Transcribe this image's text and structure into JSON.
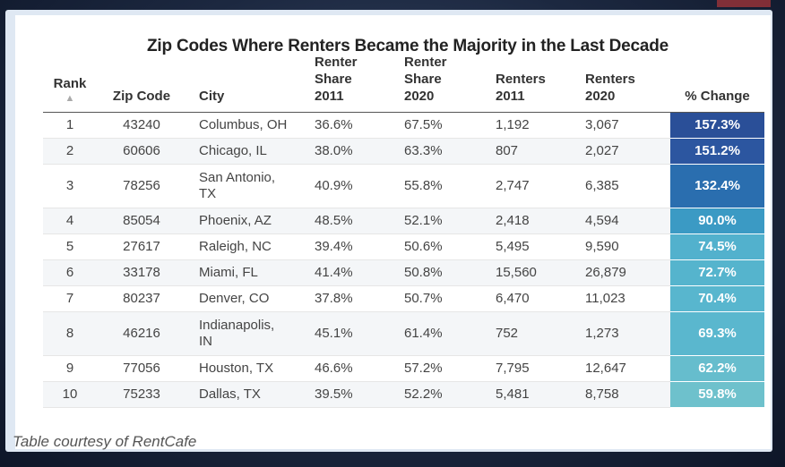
{
  "title": "Zip Codes Where Renters Became the Majority in the Last Decade",
  "columns": {
    "rank": "Rank",
    "zip": "Zip Code",
    "city": "City",
    "share2011_l1": "Renter",
    "share2011_l2": "Share",
    "share2011_l3": "2011",
    "share2020_l1": "Renter",
    "share2020_l2": "Share",
    "share2020_l3": "2020",
    "renters2011_l1": "Renters",
    "renters2011_l2": "2011",
    "renters2020_l1": "Renters",
    "renters2020_l2": "2020",
    "change": "% Change"
  },
  "rows": [
    {
      "rank": "1",
      "zip": "43240",
      "city": "Columbus, OH",
      "share2011": "36.6%",
      "share2020": "67.5%",
      "renters2011": "1,192",
      "renters2020": "3,067",
      "change": "157.3%",
      "color": "#2a4f98"
    },
    {
      "rank": "2",
      "zip": "60606",
      "city": "Chicago, IL",
      "share2011": "38.0%",
      "share2020": "63.3%",
      "renters2011": "807",
      "renters2020": "2,027",
      "change": "151.2%",
      "color": "#2c56a0"
    },
    {
      "rank": "3",
      "zip": "78256",
      "city": "San Antonio,\nTX",
      "share2011": "40.9%",
      "share2020": "55.8%",
      "renters2011": "2,747",
      "renters2020": "6,385",
      "change": "132.4%",
      "color": "#2a6eaf"
    },
    {
      "rank": "4",
      "zip": "85054",
      "city": "Phoenix, AZ",
      "share2011": "48.5%",
      "share2020": "52.1%",
      "renters2011": "2,418",
      "renters2020": "4,594",
      "change": "90.0%",
      "color": "#3b9ac4"
    },
    {
      "rank": "5",
      "zip": "27617",
      "city": "Raleigh, NC",
      "share2011": "39.4%",
      "share2020": "50.6%",
      "renters2011": "5,495",
      "renters2020": "9,590",
      "change": "74.5%",
      "color": "#52b1cd"
    },
    {
      "rank": "6",
      "zip": "33178",
      "city": "Miami, FL",
      "share2011": "41.4%",
      "share2020": "50.8%",
      "renters2011": "15,560",
      "renters2020": "26,879",
      "change": "72.7%",
      "color": "#55b4cd"
    },
    {
      "rank": "7",
      "zip": "80237",
      "city": "Denver, CO",
      "share2011": "37.8%",
      "share2020": "50.7%",
      "renters2011": "6,470",
      "renters2020": "11,023",
      "change": "70.4%",
      "color": "#58b6ce"
    },
    {
      "rank": "8",
      "zip": "46216",
      "city": "Indianapolis,\nIN",
      "share2011": "45.1%",
      "share2020": "61.4%",
      "renters2011": "752",
      "renters2020": "1,273",
      "change": "69.3%",
      "color": "#5ab7ce"
    },
    {
      "rank": "9",
      "zip": "77056",
      "city": "Houston, TX",
      "share2011": "46.6%",
      "share2020": "57.2%",
      "renters2011": "7,795",
      "renters2020": "12,647",
      "change": "62.2%",
      "color": "#66bdcd"
    },
    {
      "rank": "10",
      "zip": "75233",
      "city": "Dallas, TX",
      "share2011": "39.5%",
      "share2020": "52.2%",
      "renters2011": "5,481",
      "renters2020": "8,758",
      "change": "59.8%",
      "color": "#6ec1cc"
    }
  ],
  "credit": "Table courtesy of RentCafe",
  "sort_icon": "▲"
}
